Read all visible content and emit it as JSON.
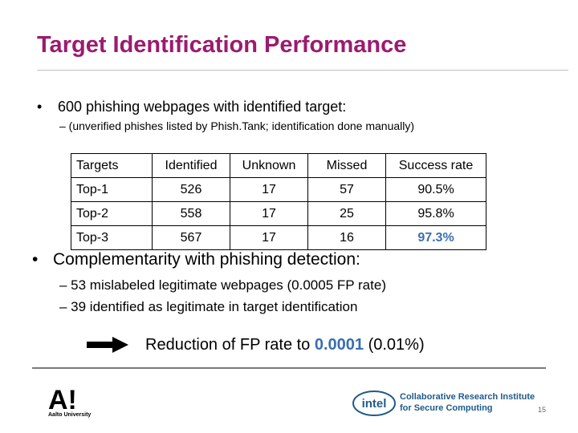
{
  "slide": {
    "title": "Target Identification Performance",
    "bullet1": "600 phishing webpages with identified target:",
    "bullet1_sub": "– (unverified phishes listed by Phish.Tank; identification done manually)",
    "bullet_char": "•",
    "bullet2": "Complementarity with phishing detection:",
    "bullet2_subs": [
      "– 53 mislabeled legitimate webpages (0.0005 FP rate)",
      "– 39 identified as legitimate in target identification"
    ],
    "reduction_prefix": "Reduction of FP rate to ",
    "reduction_value": "0.0001",
    "reduction_suffix": " (0.01%)",
    "page_number": "15"
  },
  "table": {
    "headers": [
      "Targets",
      "Identified",
      "Unknown",
      "Missed",
      "Success rate"
    ],
    "rows": [
      [
        "Top-1",
        "526",
        "17",
        "57",
        "90.5%"
      ],
      [
        "Top-2",
        "558",
        "17",
        "25",
        "95.8%"
      ],
      [
        "Top-3",
        "567",
        "17",
        "16",
        "97.3%"
      ]
    ]
  },
  "footer": {
    "university_logo_text": "A!",
    "university_name": "Aalto University",
    "intel_logo_text": "intel",
    "institute_line1": "Collaborative Research Institute",
    "institute_line2": "for Secure Computing"
  },
  "colors": {
    "title": "#9b1b6f",
    "highlight": "#3a6fb0",
    "institute": "#1f5a8a"
  },
  "icons": [
    "right-arrow-icon",
    "aalto-logo",
    "intel-logo"
  ]
}
